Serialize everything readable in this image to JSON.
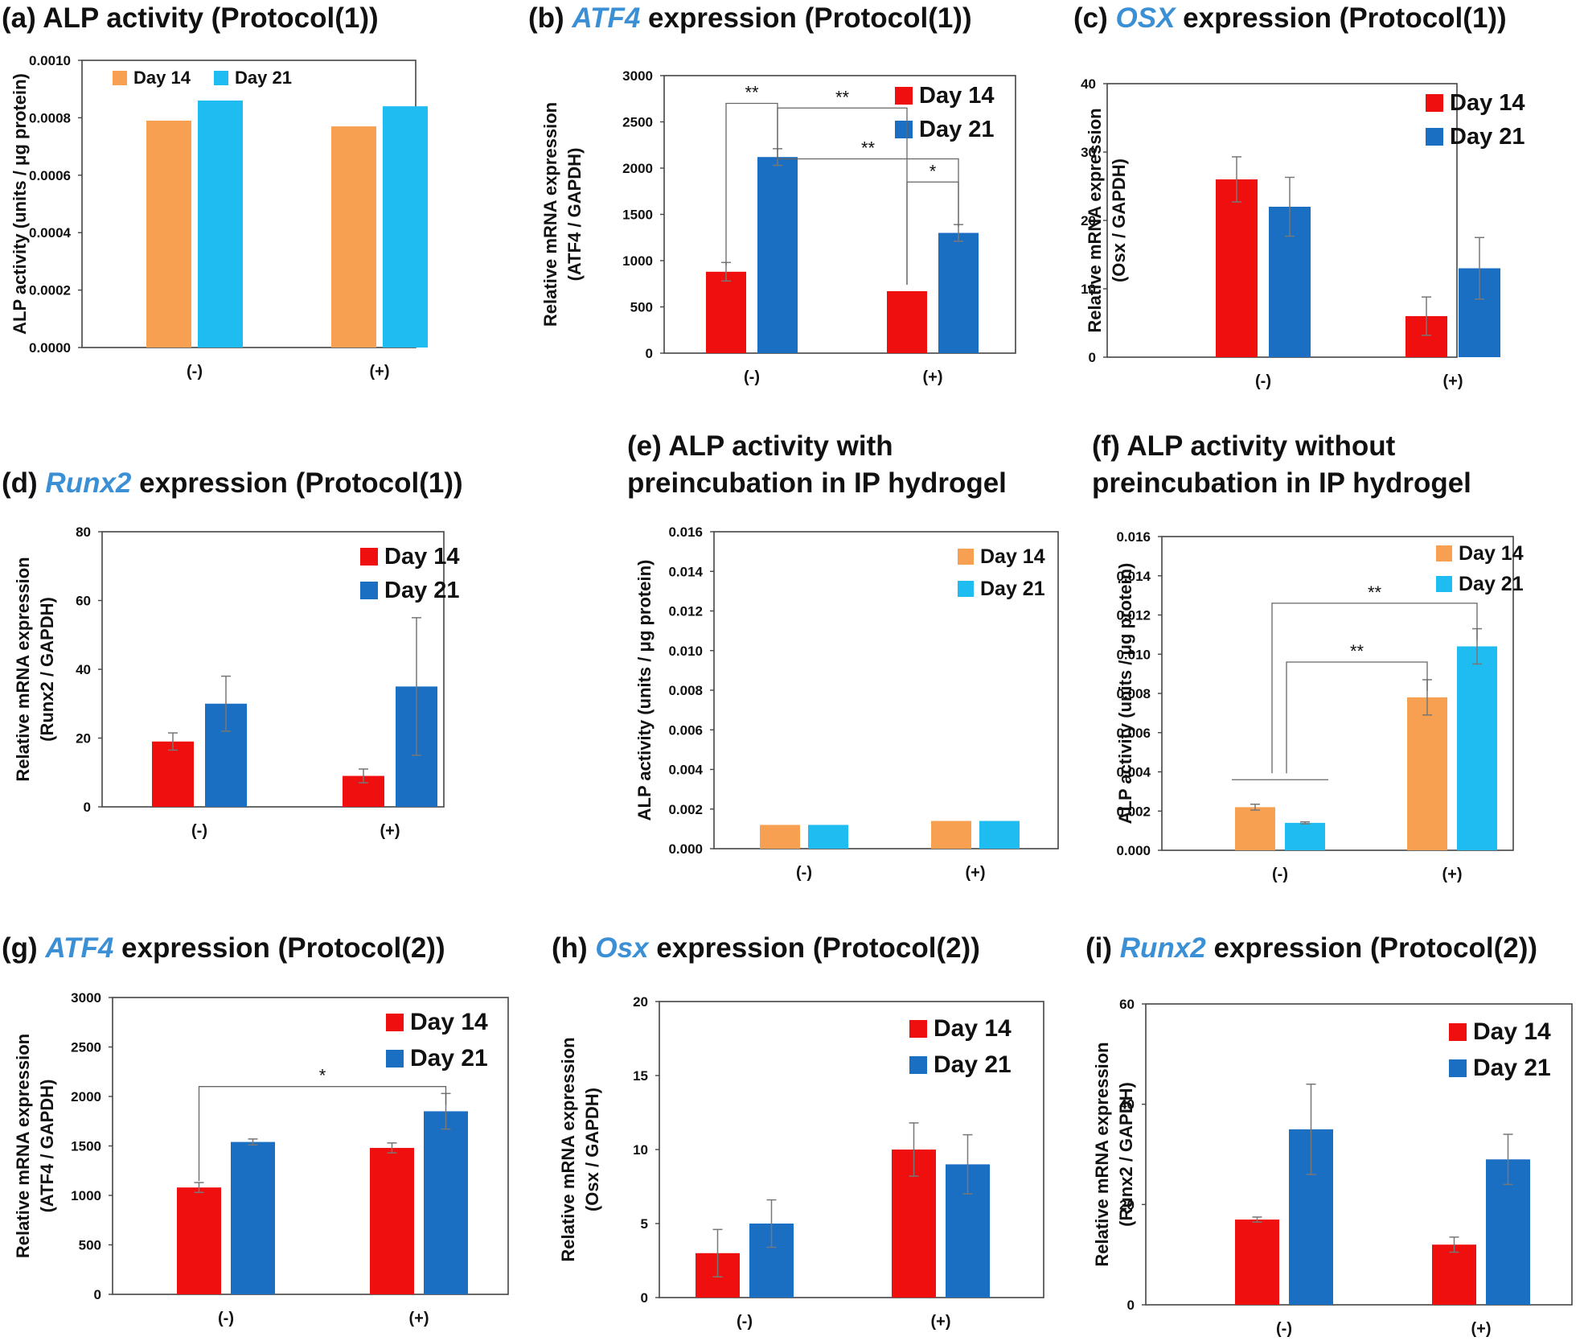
{
  "figure": {
    "gene_color": "#3b8fd4"
  },
  "chart_data": [
    {
      "id": "a",
      "type": "bar",
      "title": {
        "prefix": "(a) ",
        "gene": "",
        "suffix": "ALP activity (Protocol(1))"
      },
      "categories": [
        "(-)",
        "(+)"
      ],
      "ylabel": [
        "ALP activity (units / μg protein)"
      ],
      "ylim": [
        0,
        0.001
      ],
      "yticks": [
        "0.0000",
        "0.0002",
        "0.0004",
        "0.0006",
        "0.0008",
        "0.0010"
      ],
      "legend_position": "top-left",
      "series": [
        {
          "name": "Day 14",
          "color": "#f7a051",
          "values": [
            0.00079,
            0.00077
          ],
          "errors": [
            0,
            0
          ]
        },
        {
          "name": "Day 21",
          "color": "#1ebcf0",
          "values": [
            0.00086,
            0.00084
          ],
          "errors": [
            0,
            0
          ]
        }
      ],
      "significance": []
    },
    {
      "id": "b",
      "type": "bar",
      "title": {
        "prefix": "(b) ",
        "gene": "ATF4",
        "suffix": " expression (Protocol(1))"
      },
      "categories": [
        "(-)",
        "(+)"
      ],
      "ylabel": [
        "Relative mRNA expression",
        "(ATF4 / GAPDH)"
      ],
      "ylim": [
        0,
        3000
      ],
      "yticks": [
        "0",
        "500",
        "1000",
        "1500",
        "2000",
        "2500",
        "3000"
      ],
      "legend_position": "top-right",
      "series": [
        {
          "name": "Day 14",
          "color": "#f00f0f",
          "values": [
            880,
            670
          ],
          "errors": [
            100,
            0
          ]
        },
        {
          "name": "Day 21",
          "color": "#1b6fc3",
          "values": [
            2120,
            1300
          ],
          "errors": [
            90,
            90
          ]
        }
      ],
      "significance": [
        {
          "label": "**",
          "from": [
            0,
            0
          ],
          "to": [
            0,
            1
          ],
          "y": 2700
        },
        {
          "label": "**",
          "from": [
            0,
            1
          ],
          "to": [
            1,
            0
          ],
          "y": 2650
        },
        {
          "label": "**",
          "from": [
            0,
            1
          ],
          "to": [
            1,
            1
          ],
          "y": 2100
        },
        {
          "label": "*",
          "from": [
            1,
            0
          ],
          "to": [
            1,
            1
          ],
          "y": 1850
        }
      ]
    },
    {
      "id": "c",
      "type": "bar",
      "title": {
        "prefix": "(c) ",
        "gene": "OSX",
        "suffix": " expression (Protocol(1))"
      },
      "categories": [
        "(-)",
        "(+)"
      ],
      "ylabel": [
        "Relative mRNA expression",
        "(Osx / GAPDH)"
      ],
      "ylim": [
        0,
        40
      ],
      "yticks": [
        "0",
        "10",
        "20",
        "30",
        "40"
      ],
      "legend_position": "top-right",
      "series": [
        {
          "name": "Day 14",
          "color": "#f00f0f",
          "values": [
            26,
            6
          ],
          "errors": [
            3.3,
            2.8
          ]
        },
        {
          "name": "Day 21",
          "color": "#1b6fc3",
          "values": [
            22,
            13
          ],
          "errors": [
            4.3,
            4.5
          ]
        }
      ],
      "significance": []
    },
    {
      "id": "d",
      "type": "bar",
      "title": {
        "prefix": "(d) ",
        "gene": "Runx2",
        "suffix": " expression (Protocol(1))"
      },
      "categories": [
        "(-)",
        "(+)"
      ],
      "ylabel": [
        "Relative mRNA expression",
        "(Runx2 / GAPDH)"
      ],
      "ylim": [
        0,
        80
      ],
      "yticks": [
        "0",
        "20",
        "40",
        "60",
        "80"
      ],
      "legend_position": "top-right",
      "series": [
        {
          "name": "Day 14",
          "color": "#f00f0f",
          "values": [
            19,
            9
          ],
          "errors": [
            2.5,
            2
          ]
        },
        {
          "name": "Day 21",
          "color": "#1b6fc3",
          "values": [
            30,
            35
          ],
          "errors": [
            8,
            20
          ]
        }
      ],
      "significance": []
    },
    {
      "id": "e",
      "type": "bar",
      "title": {
        "prefix": "(e) ",
        "gene": "",
        "suffix": "ALP activity with",
        "line2": "preincubation in IP hydrogel"
      },
      "categories": [
        "(-)",
        "(+)"
      ],
      "ylabel": [
        "ALP activity (units / μg protein)"
      ],
      "ylim": [
        0,
        0.016
      ],
      "yticks": [
        "0.000",
        "0.002",
        "0.004",
        "0.006",
        "0.008",
        "0.010",
        "0.012",
        "0.014",
        "0.016"
      ],
      "legend_position": "top-right",
      "series": [
        {
          "name": "Day 14",
          "color": "#f7a051",
          "values": [
            0.0012,
            0.0014
          ],
          "errors": [
            0,
            0
          ]
        },
        {
          "name": "Day 21",
          "color": "#1ebcf0",
          "values": [
            0.0012,
            0.0014
          ],
          "errors": [
            0,
            0
          ]
        }
      ],
      "significance": []
    },
    {
      "id": "f",
      "type": "bar",
      "title": {
        "prefix": "(f) ",
        "gene": "",
        "suffix": "ALP activity without",
        "line2": "preincubation in IP hydrogel"
      },
      "categories": [
        "(-)",
        "(+)"
      ],
      "ylabel": [
        "ALP activity (units / μg protein)"
      ],
      "ylim": [
        0,
        0.016
      ],
      "yticks": [
        "0.000",
        "0.002",
        "0.004",
        "0.006",
        "0.008",
        "0.010",
        "0.012",
        "0.014",
        "0.016"
      ],
      "legend_position": "top-right",
      "series": [
        {
          "name": "Day 14",
          "color": "#f7a051",
          "values": [
            0.0022,
            0.0078
          ],
          "errors": [
            0.00015,
            0.0009
          ]
        },
        {
          "name": "Day 21",
          "color": "#1ebcf0",
          "values": [
            0.0014,
            0.0104
          ],
          "errors": [
            5e-05,
            0.0009
          ]
        }
      ],
      "group_bracket": {
        "y": 0.0036
      },
      "significance": [
        {
          "label": "**",
          "from": "group0",
          "to": [
            1,
            1
          ],
          "y": 0.0126
        },
        {
          "label": "**",
          "from": "group0",
          "to": [
            1,
            0
          ],
          "y": 0.0096
        }
      ]
    },
    {
      "id": "g",
      "type": "bar",
      "title": {
        "prefix": "(g) ",
        "gene": "ATF4",
        "suffix": " expression (Protocol(2))"
      },
      "categories": [
        "(-)",
        "(+)"
      ],
      "ylabel": [
        "Relative mRNA expression",
        "(ATF4 / GAPDH)"
      ],
      "ylim": [
        0,
        3000
      ],
      "yticks": [
        "0",
        "500",
        "1000",
        "1500",
        "2000",
        "2500",
        "3000"
      ],
      "legend_position": "top-right",
      "series": [
        {
          "name": "Day 14",
          "color": "#f00f0f",
          "values": [
            1080,
            1480
          ],
          "errors": [
            50,
            50
          ]
        },
        {
          "name": "Day 21",
          "color": "#1b6fc3",
          "values": [
            1540,
            1850
          ],
          "errors": [
            30,
            180
          ]
        }
      ],
      "significance": [
        {
          "label": "*",
          "from": [
            0,
            0
          ],
          "to": [
            1,
            1
          ],
          "y": 2100
        }
      ]
    },
    {
      "id": "h",
      "type": "bar",
      "title": {
        "prefix": "(h) ",
        "gene": "Osx",
        "suffix": " expression (Protocol(2))"
      },
      "categories": [
        "(-)",
        "(+)"
      ],
      "ylabel": [
        "Relative mRNA expression",
        "(Osx / GAPDH)"
      ],
      "ylim": [
        0,
        20
      ],
      "yticks": [
        "0",
        "5",
        "10",
        "15",
        "20"
      ],
      "legend_position": "top-right",
      "series": [
        {
          "name": "Day 14",
          "color": "#f00f0f",
          "values": [
            3,
            10
          ],
          "errors": [
            1.6,
            1.8
          ]
        },
        {
          "name": "Day 21",
          "color": "#1b6fc3",
          "values": [
            5,
            9
          ],
          "errors": [
            1.6,
            2
          ]
        }
      ],
      "significance": []
    },
    {
      "id": "i",
      "type": "bar",
      "title": {
        "prefix": "(i) ",
        "gene": "Runx2",
        "suffix": " expression (Protocol(2))"
      },
      "categories": [
        "(-)",
        "(+)"
      ],
      "ylabel": [
        "Relative mRNA expression",
        "(Runx2 / GAPDH)"
      ],
      "ylim": [
        0,
        60
      ],
      "yticks": [
        "0",
        "20",
        "40",
        "60"
      ],
      "legend_position": "top-right",
      "series": [
        {
          "name": "Day 14",
          "color": "#f00f0f",
          "values": [
            17,
            12
          ],
          "errors": [
            0.5,
            1.5
          ]
        },
        {
          "name": "Day 21",
          "color": "#1b6fc3",
          "values": [
            35,
            29
          ],
          "errors": [
            9,
            5
          ]
        }
      ],
      "significance": []
    }
  ]
}
